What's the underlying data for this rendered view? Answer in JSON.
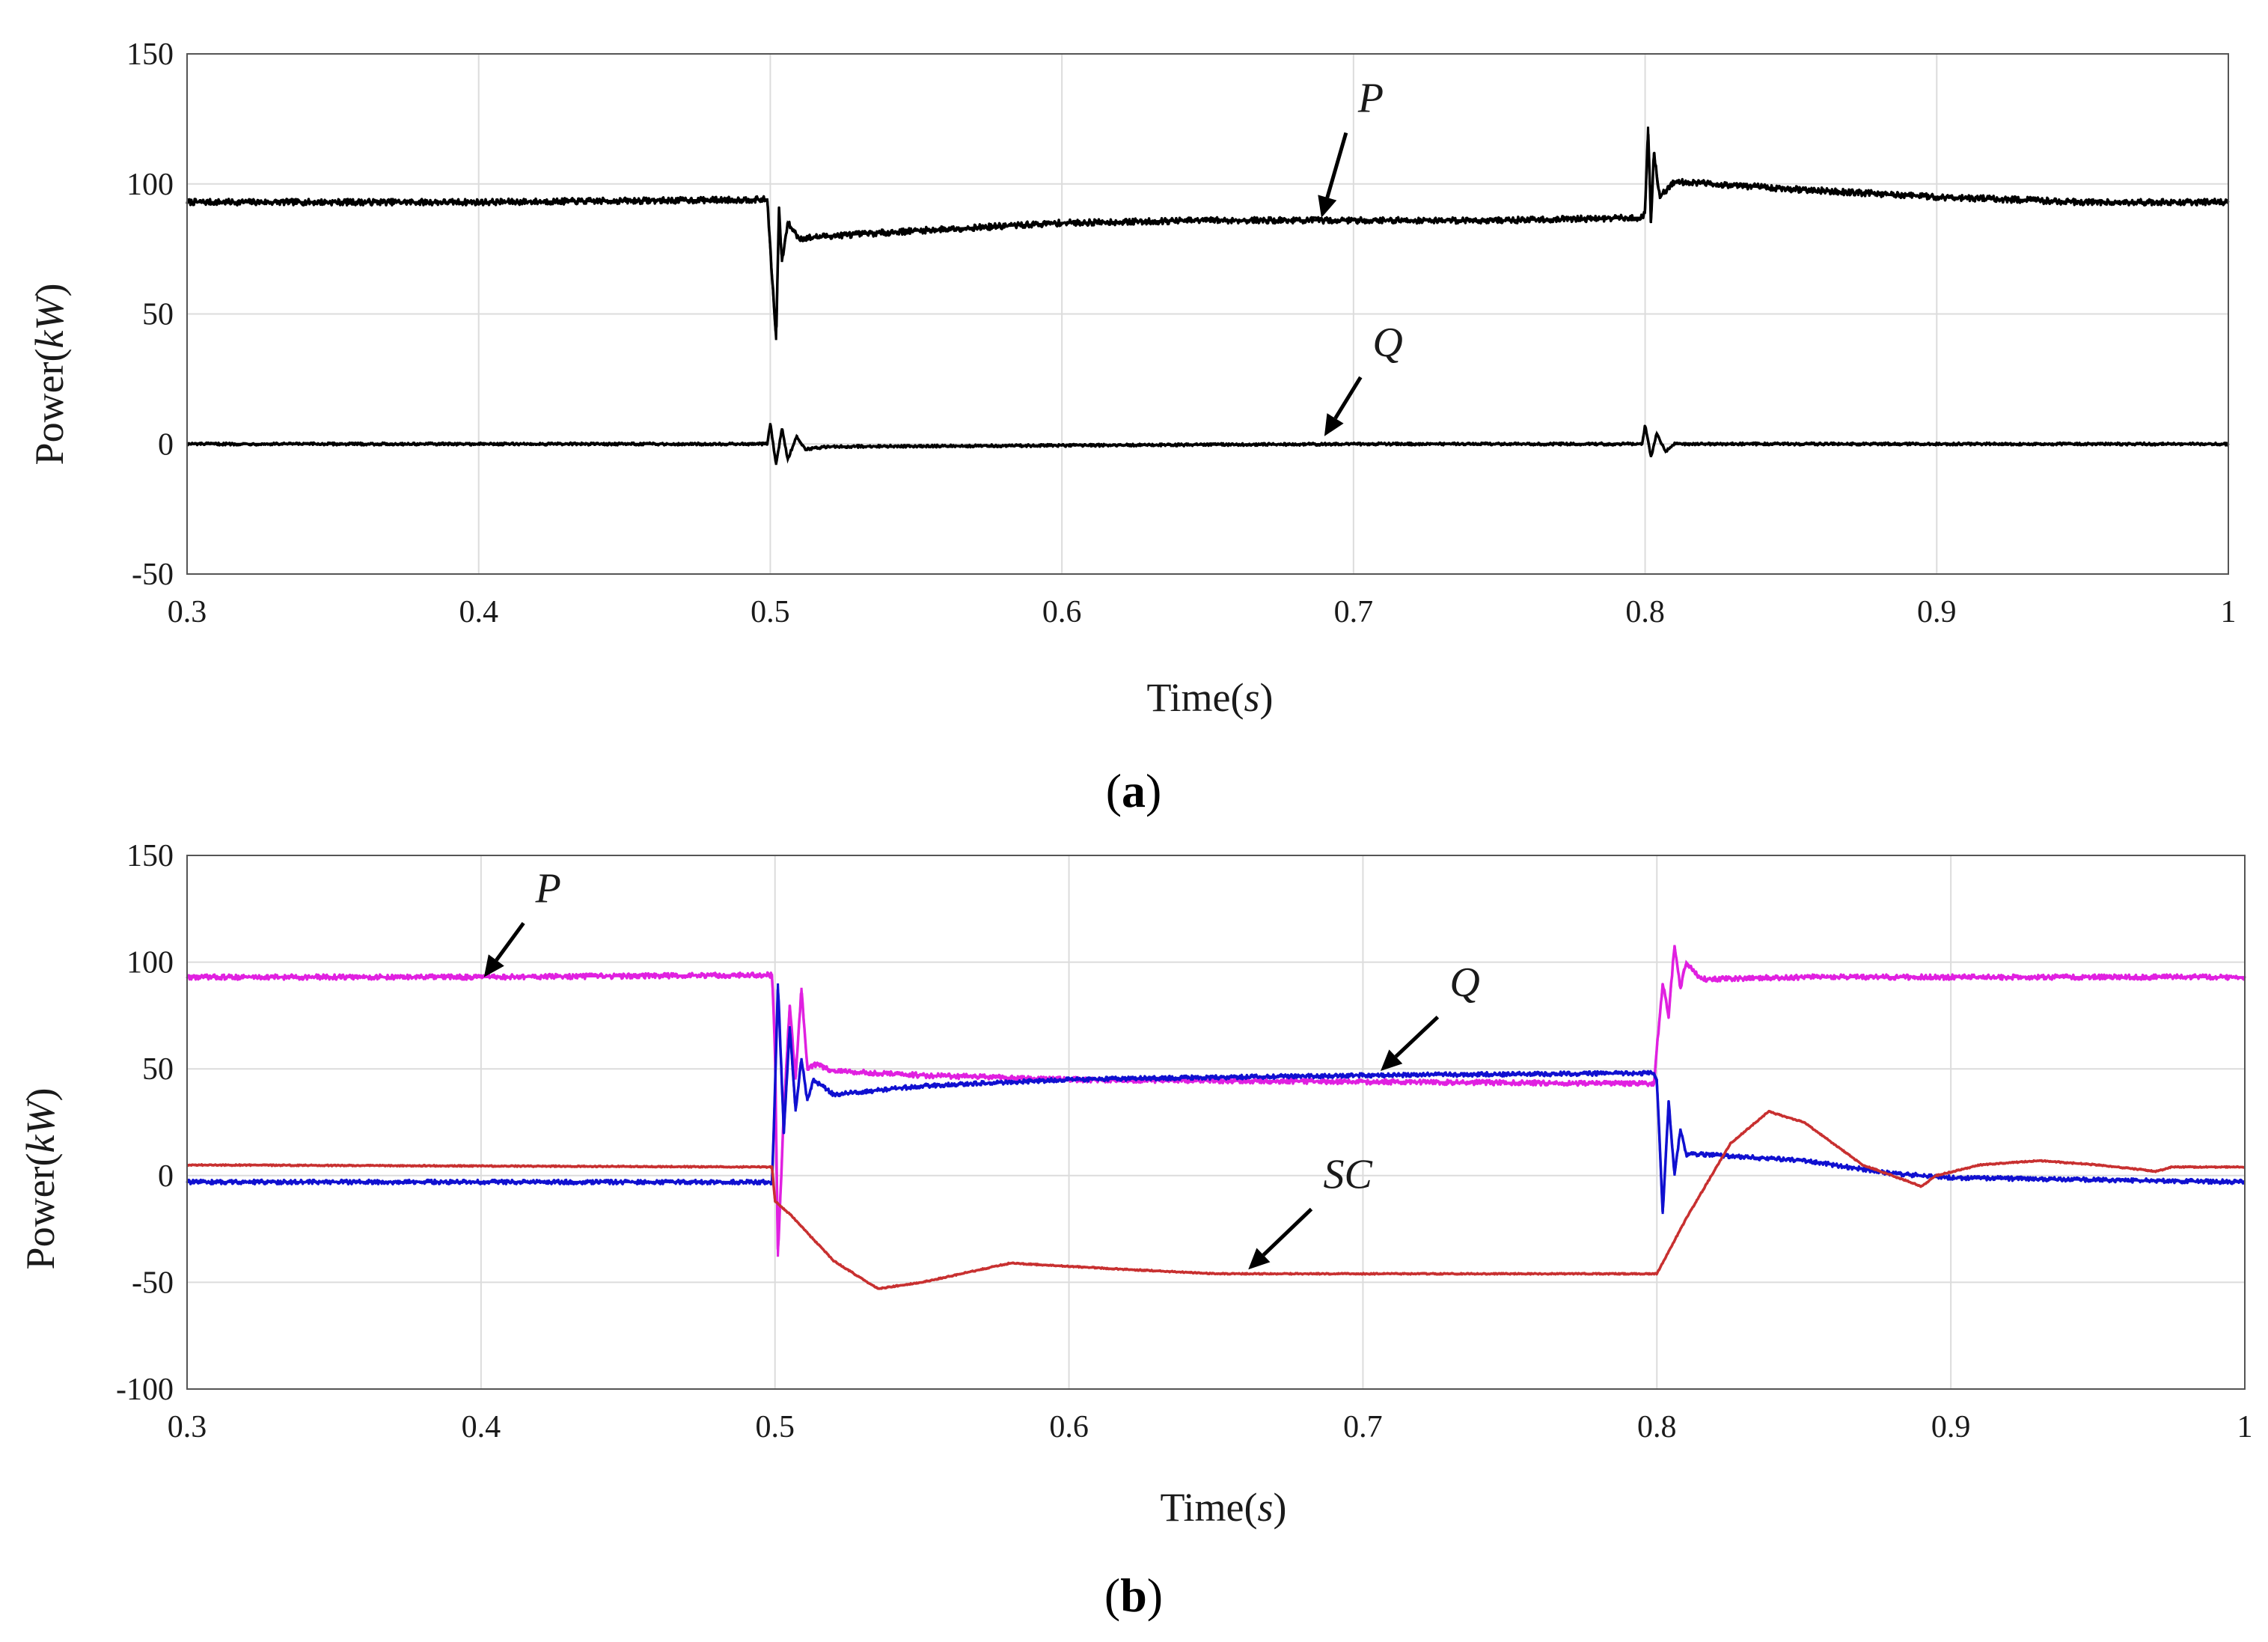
{
  "chart_data": [
    {
      "id": "a",
      "type": "line",
      "subplot_label": "a",
      "xlabel": "Time",
      "xlabel_unit": "s",
      "ylabel": "Power",
      "ylabel_unit": "kW",
      "xlim": [
        0.3,
        1.0
      ],
      "ylim": [
        -50,
        150
      ],
      "xticks": [
        0.3,
        0.4,
        0.5,
        0.6,
        0.7,
        0.8,
        0.9,
        1.0
      ],
      "xtick_labels": [
        "0.3",
        "0.4",
        "0.5",
        "0.6",
        "0.7",
        "0.8",
        "0.9",
        "1"
      ],
      "yticks": [
        150,
        100,
        50,
        0,
        -50
      ],
      "ytick_labels": [
        "150",
        "100",
        "50",
        "0",
        "-50"
      ],
      "grid": true,
      "series": [
        {
          "name": "P",
          "color": "#000000",
          "noise": 1.2,
          "points": [
            [
              0.3,
              93
            ],
            [
              0.4,
              93
            ],
            [
              0.499,
              94
            ],
            [
              0.5,
              75
            ],
            [
              0.502,
              40
            ],
            [
              0.503,
              90
            ],
            [
              0.504,
              70
            ],
            [
              0.506,
              85
            ],
            [
              0.51,
              79
            ],
            [
              0.52,
              80
            ],
            [
              0.55,
              82
            ],
            [
              0.6,
              85
            ],
            [
              0.65,
              86
            ],
            [
              0.7,
              86
            ],
            [
              0.75,
              86
            ],
            [
              0.799,
              87
            ],
            [
              0.8,
              90
            ],
            [
              0.801,
              122
            ],
            [
              0.802,
              85
            ],
            [
              0.803,
              112
            ],
            [
              0.805,
              95
            ],
            [
              0.81,
              101
            ],
            [
              0.85,
              98
            ],
            [
              0.9,
              95
            ],
            [
              0.95,
              93
            ],
            [
              1.0,
              93
            ]
          ]
        },
        {
          "name": "Q",
          "color": "#000000",
          "noise": 0.5,
          "points": [
            [
              0.3,
              0
            ],
            [
              0.499,
              0
            ],
            [
              0.5,
              8
            ],
            [
              0.502,
              -8
            ],
            [
              0.504,
              6
            ],
            [
              0.506,
              -6
            ],
            [
              0.509,
              3
            ],
            [
              0.512,
              -2
            ],
            [
              0.52,
              -1
            ],
            [
              0.7,
              0
            ],
            [
              0.799,
              0
            ],
            [
              0.8,
              7
            ],
            [
              0.802,
              -5
            ],
            [
              0.804,
              4
            ],
            [
              0.807,
              -3
            ],
            [
              0.81,
              0
            ],
            [
              1.0,
              0
            ]
          ]
        }
      ],
      "annotations": [
        {
          "label": "P",
          "x": 0.7,
          "y": 126,
          "target_x": 0.689,
          "target_y": 87
        },
        {
          "label": "Q",
          "x": 0.705,
          "y": 32,
          "target_x": 0.69,
          "target_y": 3
        }
      ]
    },
    {
      "id": "b",
      "type": "line",
      "subplot_label": "b",
      "xlabel": "Time",
      "xlabel_unit": "s",
      "ylabel": "Power",
      "ylabel_unit": "kW",
      "xlim": [
        0.3,
        1.0
      ],
      "ylim": [
        -100,
        150
      ],
      "xticks": [
        0.3,
        0.4,
        0.5,
        0.6,
        0.7,
        0.8,
        0.9,
        1.0
      ],
      "xtick_labels": [
        "0.3",
        "0.4",
        "0.5",
        "0.6",
        "0.7",
        "0.8",
        "0.9",
        "1"
      ],
      "yticks": [
        150,
        100,
        50,
        0,
        -50,
        -100
      ],
      "ytick_labels": [
        "150",
        "100",
        "50",
        "0",
        "-50",
        "-100"
      ],
      "grid": true,
      "series": [
        {
          "name": "P",
          "color": "#e020e0",
          "noise": 1.2,
          "points": [
            [
              0.3,
              93
            ],
            [
              0.4,
              93
            ],
            [
              0.499,
              94
            ],
            [
              0.5,
              60
            ],
            [
              0.501,
              -38
            ],
            [
              0.503,
              30
            ],
            [
              0.505,
              80
            ],
            [
              0.507,
              45
            ],
            [
              0.509,
              88
            ],
            [
              0.511,
              50
            ],
            [
              0.514,
              52
            ],
            [
              0.52,
              49
            ],
            [
              0.55,
              47
            ],
            [
              0.6,
              45
            ],
            [
              0.7,
              44
            ],
            [
              0.799,
              43
            ],
            [
              0.8,
              60
            ],
            [
              0.802,
              90
            ],
            [
              0.804,
              75
            ],
            [
              0.806,
              108
            ],
            [
              0.808,
              88
            ],
            [
              0.81,
              100
            ],
            [
              0.815,
              92
            ],
            [
              0.85,
              93
            ],
            [
              0.9,
              93
            ],
            [
              1.0,
              93
            ]
          ]
        },
        {
          "name": "Q",
          "color": "#1010d0",
          "noise": 1.0,
          "points": [
            [
              0.3,
              -3
            ],
            [
              0.499,
              -3
            ],
            [
              0.5,
              40
            ],
            [
              0.501,
              90
            ],
            [
              0.503,
              20
            ],
            [
              0.505,
              70
            ],
            [
              0.507,
              30
            ],
            [
              0.509,
              55
            ],
            [
              0.511,
              35
            ],
            [
              0.513,
              45
            ],
            [
              0.52,
              38
            ],
            [
              0.55,
              42
            ],
            [
              0.6,
              45
            ],
            [
              0.65,
              46
            ],
            [
              0.7,
              47
            ],
            [
              0.799,
              48
            ],
            [
              0.8,
              45
            ],
            [
              0.802,
              -18
            ],
            [
              0.804,
              35
            ],
            [
              0.806,
              0
            ],
            [
              0.808,
              22
            ],
            [
              0.81,
              10
            ],
            [
              0.815,
              10
            ],
            [
              0.85,
              7
            ],
            [
              0.88,
              1
            ],
            [
              0.9,
              -1
            ],
            [
              1.0,
              -3
            ]
          ]
        },
        {
          "name": "SC",
          "color": "#c83030",
          "noise": 0.3,
          "points": [
            [
              0.3,
              5
            ],
            [
              0.499,
              4
            ],
            [
              0.5,
              -12
            ],
            [
              0.505,
              -18
            ],
            [
              0.52,
              -40
            ],
            [
              0.535,
              -53
            ],
            [
              0.55,
              -50
            ],
            [
              0.58,
              -41
            ],
            [
              0.62,
              -44
            ],
            [
              0.65,
              -46
            ],
            [
              0.7,
              -46
            ],
            [
              0.75,
              -46
            ],
            [
              0.8,
              -46
            ],
            [
              0.81,
              -20
            ],
            [
              0.825,
              15
            ],
            [
              0.838,
              30
            ],
            [
              0.85,
              25
            ],
            [
              0.87,
              5
            ],
            [
              0.89,
              -5
            ],
            [
              0.895,
              0
            ],
            [
              0.91,
              5
            ],
            [
              0.93,
              7
            ],
            [
              0.95,
              5
            ],
            [
              0.97,
              2
            ],
            [
              0.975,
              4
            ],
            [
              1.0,
              4
            ]
          ]
        }
      ],
      "annotations": [
        {
          "label": "P",
          "x": 0.417,
          "y": 126,
          "target_x": 0.401,
          "target_y": 93
        },
        {
          "label": "Q",
          "x": 0.728,
          "y": 82,
          "target_x": 0.706,
          "target_y": 49
        },
        {
          "label": "SC",
          "x": 0.685,
          "y": -8,
          "target_x": 0.661,
          "target_y": -44
        }
      ]
    }
  ]
}
